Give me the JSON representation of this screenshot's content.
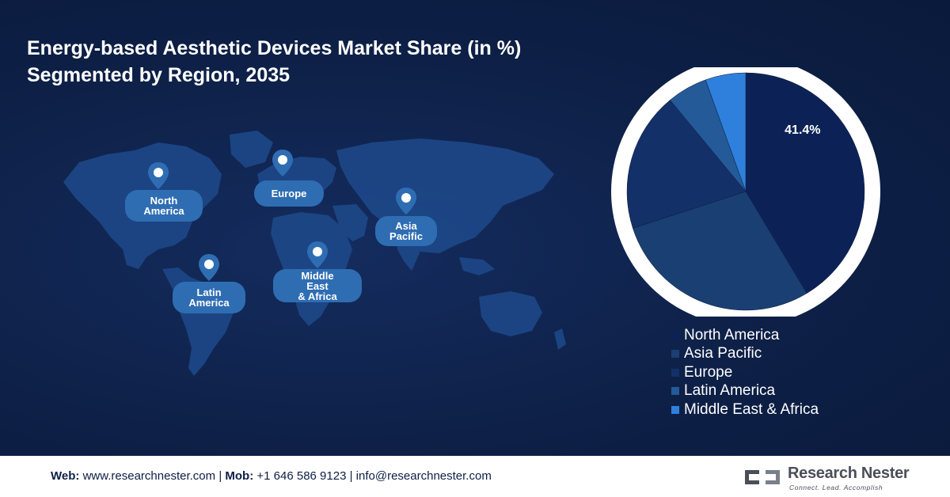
{
  "title": {
    "line1": "Energy-based Aesthetic Devices Market Share (in %)",
    "line2": "Segmented by Region, 2035"
  },
  "map": {
    "regions": [
      {
        "name": "north-america",
        "label": "North\nAmerica"
      },
      {
        "name": "europe",
        "label": "Europe"
      },
      {
        "name": "asia-pacific",
        "label": "Asia\nPacific"
      },
      {
        "name": "latin-america",
        "label": "Latin\nAmerica"
      },
      {
        "name": "middle-east-africa",
        "label": "Middle\nEast\n& Africa"
      }
    ]
  },
  "chart_data": {
    "type": "pie",
    "title": "Energy-based Aesthetic Devices Market Share (in %) Segmented by Region, 2035",
    "slices": [
      {
        "label": "North America",
        "value": 41.4,
        "color": "#0c2257",
        "show_label": true
      },
      {
        "label": "Asia Pacific",
        "value": 28.6,
        "color": "#1a3f72"
      },
      {
        "label": "Europe",
        "value": 19.0,
        "color": "#143068"
      },
      {
        "label": "Latin America",
        "value": 5.5,
        "color": "#245a98"
      },
      {
        "label": "Middle East & Africa",
        "value": 5.5,
        "color": "#2f80dc"
      }
    ],
    "data_labels": [
      "41.4%"
    ],
    "legend_position": "bottom"
  },
  "colors": {
    "background": "#0d1f45",
    "ring": "#ffffff",
    "label_pill": "#2f6db3",
    "footer_text": "#0d1f45"
  },
  "footer": {
    "web_label": "Web:",
    "web_value": "www.researchnester.com",
    "mob_label": "Mob:",
    "mob_value": "+1 646 586 9123",
    "email_value": "info@researchnester.com",
    "separator": "|",
    "brand_name": "Research Nester",
    "brand_tagline": "Connect. Lead. Accomplish"
  }
}
